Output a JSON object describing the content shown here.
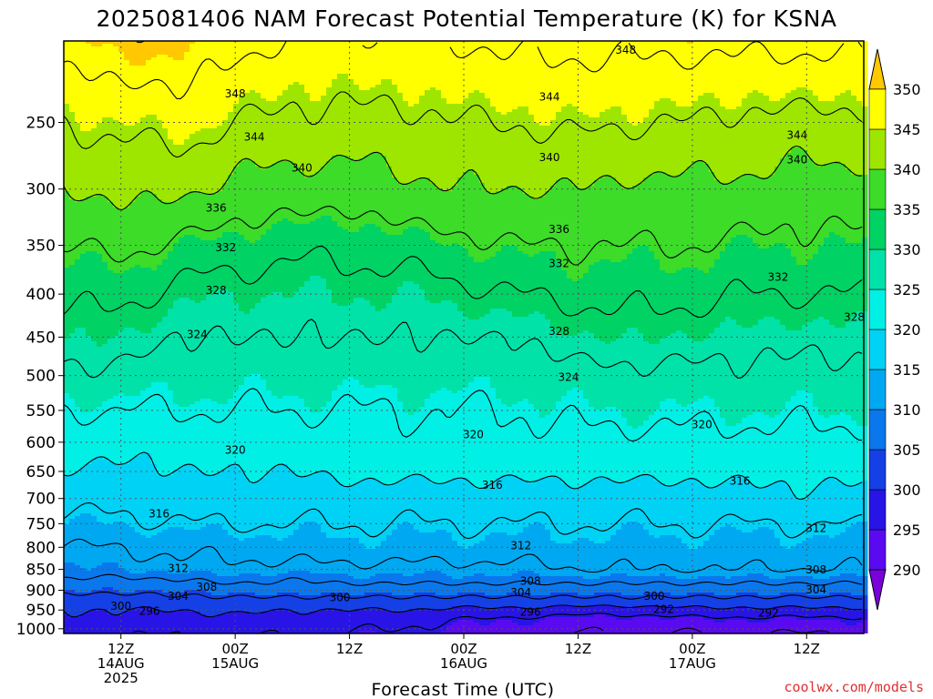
{
  "title": "2025081406 NAM Forecast Potential Temperature (K) for KSNA",
  "credit": "coolwx.com/models",
  "colors": {
    "ground": "#a0522d",
    "gridline": "#555555",
    "contour": "#000000",
    "bands": [
      {
        "min": 285,
        "max": 290,
        "color": "#7a00dc"
      },
      {
        "min": 290,
        "max": 295,
        "color": "#5a0af0"
      },
      {
        "min": 295,
        "max": 300,
        "color": "#2814e6"
      },
      {
        "min": 300,
        "max": 305,
        "color": "#1440e6"
      },
      {
        "min": 305,
        "max": 310,
        "color": "#0a78ec"
      },
      {
        "min": 310,
        "max": 315,
        "color": "#00a8f2"
      },
      {
        "min": 315,
        "max": 320,
        "color": "#00d2f6"
      },
      {
        "min": 320,
        "max": 325,
        "color": "#00f0e6"
      },
      {
        "min": 325,
        "max": 330,
        "color": "#00e2a8"
      },
      {
        "min": 330,
        "max": 335,
        "color": "#00d264"
      },
      {
        "min": 335,
        "max": 340,
        "color": "#3cdc28"
      },
      {
        "min": 340,
        "max": 345,
        "color": "#9ee600"
      },
      {
        "min": 345,
        "max": 350,
        "color": "#ffff00"
      },
      {
        "min": 350,
        "max": 355,
        "color": "#ffc800"
      }
    ]
  },
  "chart_data": {
    "type": "heatmap",
    "title": "2025081406 NAM Forecast Potential Temperature (K) for KSNA",
    "xlabel": "Forecast Time (UTC)",
    "ylabel": "",
    "unit": "K",
    "x_axis": {
      "unit": "forecast hour from 2025-08-14 06Z",
      "range": [
        0,
        84
      ],
      "ticks": [
        {
          "hour": 6,
          "labels": [
            "12Z",
            "14AUG",
            "2025"
          ]
        },
        {
          "hour": 18,
          "labels": [
            "00Z",
            "15AUG"
          ]
        },
        {
          "hour": 30,
          "labels": [
            "12Z"
          ]
        },
        {
          "hour": 42,
          "labels": [
            "00Z",
            "16AUG"
          ]
        },
        {
          "hour": 54,
          "labels": [
            "12Z"
          ]
        },
        {
          "hour": 66,
          "labels": [
            "00Z",
            "17AUG"
          ]
        },
        {
          "hour": 78,
          "labels": [
            "12Z"
          ]
        }
      ]
    },
    "y_axis": {
      "unit": "hPa",
      "inverted": true,
      "range": [
        1013,
        200
      ],
      "ticks": [
        1000,
        950,
        900,
        850,
        800,
        750,
        700,
        650,
        600,
        550,
        500,
        450,
        400,
        350,
        300,
        250
      ]
    },
    "colorbar": {
      "levels": [
        290,
        295,
        300,
        305,
        310,
        315,
        320,
        325,
        330,
        335,
        340,
        345,
        350
      ],
      "position": "right"
    },
    "grid": true,
    "surface_pressure": 1013,
    "theta_profiles": {
      "pressures": [
        1013,
        975,
        950,
        925,
        900,
        875,
        850,
        800,
        750,
        700,
        650,
        600,
        550,
        500,
        450,
        400,
        350,
        300,
        250,
        200
      ],
      "columns": [
        {
          "hour": 0,
          "theta": [
            298,
            299,
            300,
            302,
            305,
            308,
            310,
            312,
            315,
            318,
            320,
            322,
            324,
            327,
            330,
            333,
            336,
            340,
            344,
            350
          ]
        },
        {
          "hour": 6,
          "theta": [
            297,
            299,
            300,
            302,
            305,
            307,
            310,
            312,
            315,
            317,
            319,
            321,
            324,
            327,
            330,
            333,
            337,
            341,
            345,
            351
          ]
        },
        {
          "hour": 12,
          "theta": [
            296,
            298,
            300,
            303,
            305,
            308,
            311,
            313,
            316,
            318,
            320,
            322,
            324,
            326,
            328,
            331,
            335,
            341,
            346,
            351
          ]
        },
        {
          "hour": 18,
          "theta": [
            297,
            299,
            301,
            303,
            306,
            309,
            311,
            313,
            316,
            318,
            320,
            322,
            324,
            326,
            328,
            330,
            334,
            339,
            344,
            349
          ]
        },
        {
          "hour": 24,
          "theta": [
            296,
            298,
            300,
            303,
            306,
            308,
            311,
            314,
            316,
            318,
            320,
            322,
            324,
            326,
            328,
            330,
            333,
            338,
            343,
            348
          ]
        },
        {
          "hour": 30,
          "theta": [
            296,
            298,
            300,
            303,
            306,
            309,
            311,
            314,
            316,
            318,
            321,
            322,
            324,
            326,
            328,
            330,
            333,
            338,
            343,
            347
          ]
        },
        {
          "hour": 36,
          "theta": [
            295,
            297,
            300,
            303,
            306,
            309,
            311,
            314,
            316,
            318,
            321,
            323,
            324,
            326,
            328,
            330,
            334,
            339,
            343,
            348
          ]
        },
        {
          "hour": 42,
          "theta": [
            294,
            296,
            299,
            303,
            306,
            309,
            311,
            314,
            316,
            318,
            321,
            323,
            324,
            326,
            328,
            331,
            335,
            340,
            344,
            348
          ]
        },
        {
          "hour": 48,
          "theta": [
            293,
            295,
            299,
            303,
            306,
            309,
            311,
            314,
            316,
            318,
            321,
            323,
            324,
            326,
            328,
            332,
            336,
            340,
            344,
            349
          ]
        },
        {
          "hour": 54,
          "theta": [
            292,
            294,
            298,
            303,
            306,
            309,
            312,
            314,
            316,
            318,
            321,
            323,
            325,
            327,
            330,
            333,
            336,
            340,
            345,
            349
          ]
        },
        {
          "hour": 60,
          "theta": [
            292,
            294,
            298,
            303,
            306,
            309,
            312,
            314,
            316,
            318,
            321,
            323,
            325,
            327,
            330,
            333,
            336,
            339,
            344,
            349
          ]
        },
        {
          "hour": 66,
          "theta": [
            292,
            295,
            299,
            303,
            306,
            309,
            312,
            314,
            316,
            318,
            321,
            323,
            325,
            327,
            330,
            333,
            336,
            339,
            344,
            349
          ]
        },
        {
          "hour": 72,
          "theta": [
            292,
            295,
            299,
            303,
            306,
            309,
            312,
            314,
            316,
            319,
            321,
            323,
            325,
            327,
            329,
            332,
            335,
            339,
            343,
            349
          ]
        },
        {
          "hour": 78,
          "theta": [
            292,
            295,
            299,
            303,
            306,
            309,
            312,
            314,
            316,
            319,
            321,
            323,
            325,
            327,
            329,
            332,
            335,
            338,
            343,
            349
          ]
        },
        {
          "hour": 84,
          "theta": [
            292,
            295,
            299,
            303,
            306,
            309,
            312,
            314,
            316,
            319,
            321,
            323,
            325,
            327,
            329,
            332,
            335,
            338,
            343,
            349
          ]
        }
      ]
    },
    "contour_interval": 4,
    "contour_labels": [
      {
        "value": 348,
        "hour": 59,
        "pressure": 205
      },
      {
        "value": 348,
        "hour": 18,
        "pressure": 231
      },
      {
        "value": 344,
        "hour": 51,
        "pressure": 233
      },
      {
        "value": 344,
        "hour": 20,
        "pressure": 260
      },
      {
        "value": 344,
        "hour": 77,
        "pressure": 259
      },
      {
        "value": 340,
        "hour": 25,
        "pressure": 283
      },
      {
        "value": 340,
        "hour": 51,
        "pressure": 275
      },
      {
        "value": 340,
        "hour": 77,
        "pressure": 277
      },
      {
        "value": 336,
        "hour": 16,
        "pressure": 316
      },
      {
        "value": 336,
        "hour": 52,
        "pressure": 335
      },
      {
        "value": 332,
        "hour": 17,
        "pressure": 352
      },
      {
        "value": 332,
        "hour": 52,
        "pressure": 368
      },
      {
        "value": 332,
        "hour": 75,
        "pressure": 382
      },
      {
        "value": 328,
        "hour": 16,
        "pressure": 396
      },
      {
        "value": 328,
        "hour": 83,
        "pressure": 426
      },
      {
        "value": 328,
        "hour": 52,
        "pressure": 443
      },
      {
        "value": 324,
        "hour": 14,
        "pressure": 447
      },
      {
        "value": 324,
        "hour": 53,
        "pressure": 502
      },
      {
        "value": 320,
        "hour": 43,
        "pressure": 588
      },
      {
        "value": 320,
        "hour": 67,
        "pressure": 572
      },
      {
        "value": 320,
        "hour": 18,
        "pressure": 613
      },
      {
        "value": 316,
        "hour": 45,
        "pressure": 675
      },
      {
        "value": 316,
        "hour": 71,
        "pressure": 667
      },
      {
        "value": 316,
        "hour": 10,
        "pressure": 730
      },
      {
        "value": 312,
        "hour": 48,
        "pressure": 796
      },
      {
        "value": 312,
        "hour": 79,
        "pressure": 760
      },
      {
        "value": 312,
        "hour": 12,
        "pressure": 848
      },
      {
        "value": 308,
        "hour": 15,
        "pressure": 892
      },
      {
        "value": 308,
        "hour": 49,
        "pressure": 878
      },
      {
        "value": 308,
        "hour": 79,
        "pressure": 851
      },
      {
        "value": 304,
        "hour": 12,
        "pressure": 915
      },
      {
        "value": 304,
        "hour": 48,
        "pressure": 906
      },
      {
        "value": 304,
        "hour": 79,
        "pressure": 899
      },
      {
        "value": 300,
        "hour": 6,
        "pressure": 940
      },
      {
        "value": 300,
        "hour": 29,
        "pressure": 918
      },
      {
        "value": 300,
        "hour": 62,
        "pressure": 915
      },
      {
        "value": 296,
        "hour": 9,
        "pressure": 953
      },
      {
        "value": 296,
        "hour": 49,
        "pressure": 955
      },
      {
        "value": 292,
        "hour": 63,
        "pressure": 948
      },
      {
        "value": 292,
        "hour": 74,
        "pressure": 958
      }
    ]
  }
}
